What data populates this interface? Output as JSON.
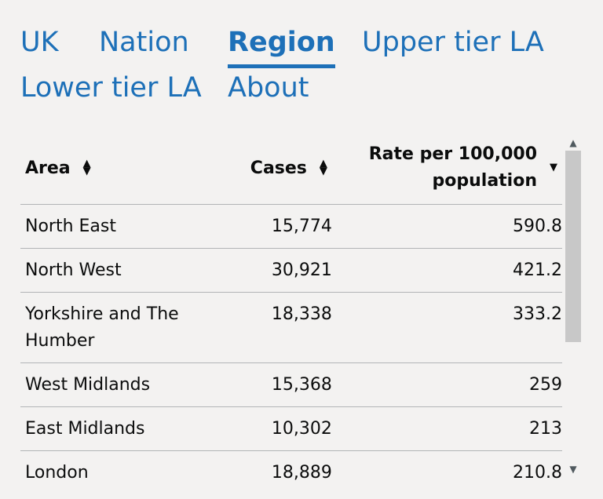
{
  "tabs": [
    {
      "label": "UK",
      "active": false
    },
    {
      "label": "Nation",
      "active": false
    },
    {
      "label": "Region",
      "active": true
    },
    {
      "label": "Upper tier LA",
      "active": false
    },
    {
      "label": "Lower tier LA",
      "active": false
    },
    {
      "label": "About",
      "active": false
    }
  ],
  "table": {
    "headers": {
      "area": "Area",
      "cases": "Cases",
      "rate_line1": "Rate per 100,000",
      "rate_line2": "population"
    },
    "sort": {
      "area": "none",
      "cases": "none",
      "rate": "descending"
    },
    "rows": [
      {
        "area": "North East",
        "cases": "15,774",
        "rate": "590.8"
      },
      {
        "area": "North West",
        "cases": "30,921",
        "rate": "421.2"
      },
      {
        "area": "Yorkshire and The Humber",
        "cases": "18,338",
        "rate": "333.2"
      },
      {
        "area": "West Midlands",
        "cases": "15,368",
        "rate": "259"
      },
      {
        "area": "East Midlands",
        "cases": "10,302",
        "rate": "213"
      },
      {
        "area": "London",
        "cases": "18,889",
        "rate": "210.8"
      }
    ]
  },
  "colors": {
    "link": "#1d70b8",
    "text": "#0b0c0c",
    "background": "#f3f2f1",
    "border": "#b1b4b6"
  }
}
